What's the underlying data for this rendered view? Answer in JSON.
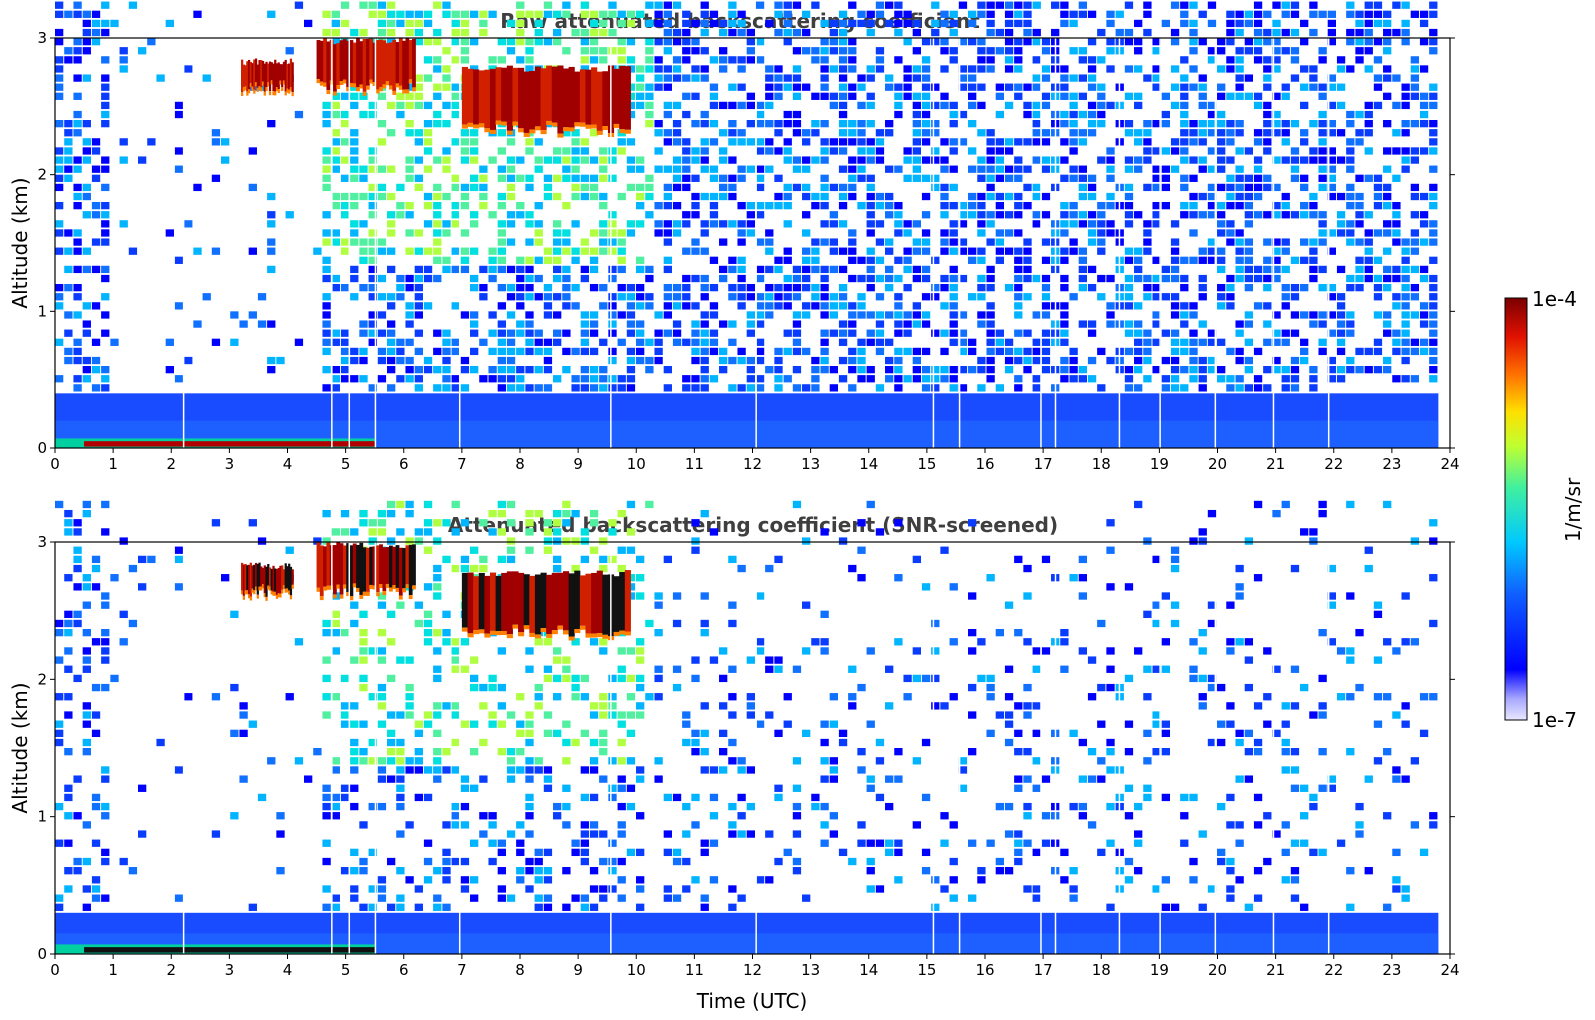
{
  "chart_data": [
    {
      "type": "heatmap",
      "title": "Raw attenuated backscattering coefficient",
      "xlabel": "",
      "ylabel": "Altitude (km)",
      "xlim": [
        0,
        24
      ],
      "ylim": [
        0,
        3
      ],
      "x_ticks": [
        "0",
        "1",
        "2",
        "3",
        "4",
        "5",
        "6",
        "7",
        "8",
        "9",
        "10",
        "11",
        "12",
        "13",
        "14",
        "15",
        "16",
        "17",
        "18",
        "19",
        "20",
        "21",
        "22",
        "23",
        "24"
      ],
      "y_ticks": [
        "0",
        "1",
        "2",
        "3"
      ],
      "screened": false,
      "features": {
        "surface_layer": {
          "x_range": [
            0,
            5.5
          ],
          "altitude_km": 0.05,
          "level": "high"
        },
        "cloud_layers": [
          {
            "x_range": [
              3.2,
              4.1
            ],
            "altitude_km": [
              2.6,
              2.85
            ]
          },
          {
            "x_range": [
              4.5,
              6.2
            ],
            "altitude_km": [
              2.6,
              3.0
            ]
          },
          {
            "x_range": [
              7.0,
              9.9
            ],
            "altitude_km": [
              2.3,
              2.8
            ]
          }
        ],
        "boundary_layer_top_km": 0.4
      }
    },
    {
      "type": "heatmap",
      "title": "Attenuated backscattering coefficient (SNR-screened)",
      "xlabel": "Time (UTC)",
      "ylabel": "Altitude (km)",
      "xlim": [
        0,
        24
      ],
      "ylim": [
        0,
        3
      ],
      "x_ticks": [
        "0",
        "1",
        "2",
        "3",
        "4",
        "5",
        "6",
        "7",
        "8",
        "9",
        "10",
        "11",
        "12",
        "13",
        "14",
        "15",
        "16",
        "17",
        "18",
        "19",
        "20",
        "21",
        "22",
        "23",
        "24"
      ],
      "y_ticks": [
        "0",
        "1",
        "2",
        "3"
      ],
      "screened": true,
      "features": {
        "surface_layer": {
          "x_range": [
            0,
            5.5
          ],
          "altitude_km": 0.05,
          "level": "saturated"
        },
        "cloud_layers": [
          {
            "x_range": [
              3.2,
              4.1
            ],
            "altitude_km": [
              2.6,
              2.85
            ]
          },
          {
            "x_range": [
              4.5,
              6.2
            ],
            "altitude_km": [
              2.6,
              3.0
            ]
          },
          {
            "x_range": [
              7.0,
              9.9
            ],
            "altitude_km": [
              2.3,
              2.8
            ]
          }
        ],
        "boundary_layer_top_km": 0.3
      }
    }
  ],
  "colorbar": {
    "max_label": "1e-4",
    "min_label": "1e-7",
    "label": "1/m/sr",
    "colormap": "jet",
    "scale": "log",
    "range": [
      1e-07,
      0.0001
    ]
  }
}
